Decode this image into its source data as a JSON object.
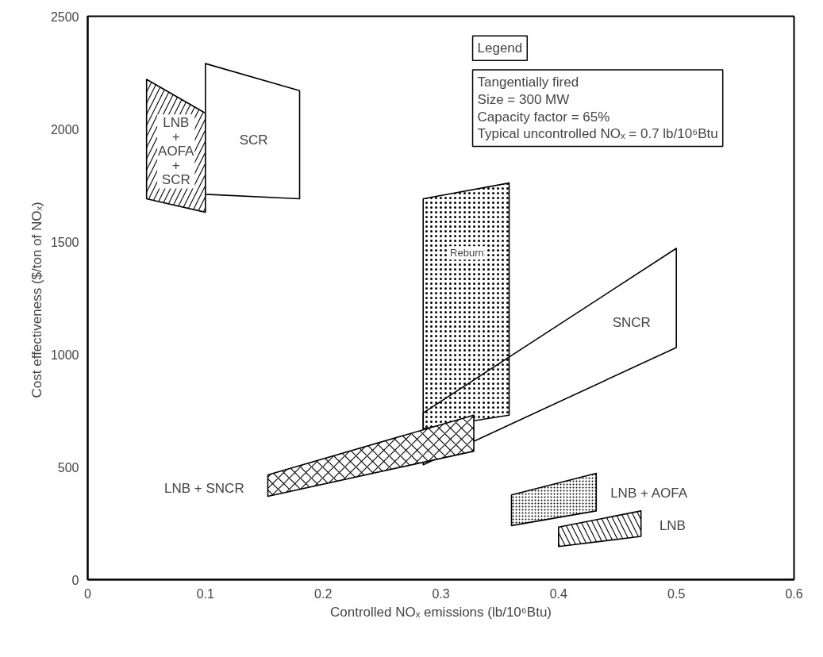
{
  "chart_data": {
    "type": "area",
    "xlabel": "Controlled NOₓ emissions (lb/10⁶Btu)",
    "ylabel": "Cost effectiveness  ($/ton of NOₓ)",
    "xlim": [
      0,
      0.6
    ],
    "ylim": [
      0,
      2500
    ],
    "xticks": [
      0,
      0.1,
      0.2,
      0.3,
      0.4,
      0.5,
      0.6
    ],
    "yticks": [
      0,
      500,
      1000,
      1500,
      2000,
      2500
    ],
    "grid": false,
    "series": [
      {
        "color": "#000000",
        "x": [
          0.05,
          0.1,
          0.1,
          0.05
        ],
        "values": [
          2220,
          2070,
          1630,
          1690
        ]
      },
      {
        "color": "#000000",
        "x": [
          0.1,
          0.18,
          0.18,
          0.1
        ],
        "values": [
          2290,
          2170,
          1690,
          1710
        ]
      },
      {
        "color": "#000000",
        "x": [
          0.285,
          0.358,
          0.358,
          0.285
        ],
        "values": [
          1690,
          1760,
          730,
          670
        ]
      },
      {
        "color": "#000000",
        "x": [
          0.285,
          0.5,
          0.5,
          0.285
        ],
        "values": [
          740,
          1470,
          1030,
          510
        ]
      },
      {
        "color": "#000000",
        "x": [
          0.153,
          0.328,
          0.328,
          0.153
        ],
        "values": [
          465,
          730,
          570,
          370
        ]
      },
      {
        "color": "#000000",
        "x": [
          0.36,
          0.432,
          0.432,
          0.36
        ],
        "values": [
          376,
          472,
          305,
          240
        ]
      },
      {
        "color": "#000000",
        "x": [
          0.4,
          0.47,
          0.47,
          0.4
        ],
        "values": [
          233,
          305,
          192,
          147
        ]
      }
    ],
    "annotations": [
      "LNB\n+\nAOFA\n+\nSCR",
      "SCR",
      "Reburn",
      "SNCR",
      "LNB + SNCR",
      "LNB + AOFA",
      "LNB",
      "Legend",
      "Tangentially fired",
      "Size = 300 MW",
      "Capacity factor = 65%",
      "Typical uncontrolled NOₓ = 0.7 lb/10⁶Btu"
    ]
  }
}
